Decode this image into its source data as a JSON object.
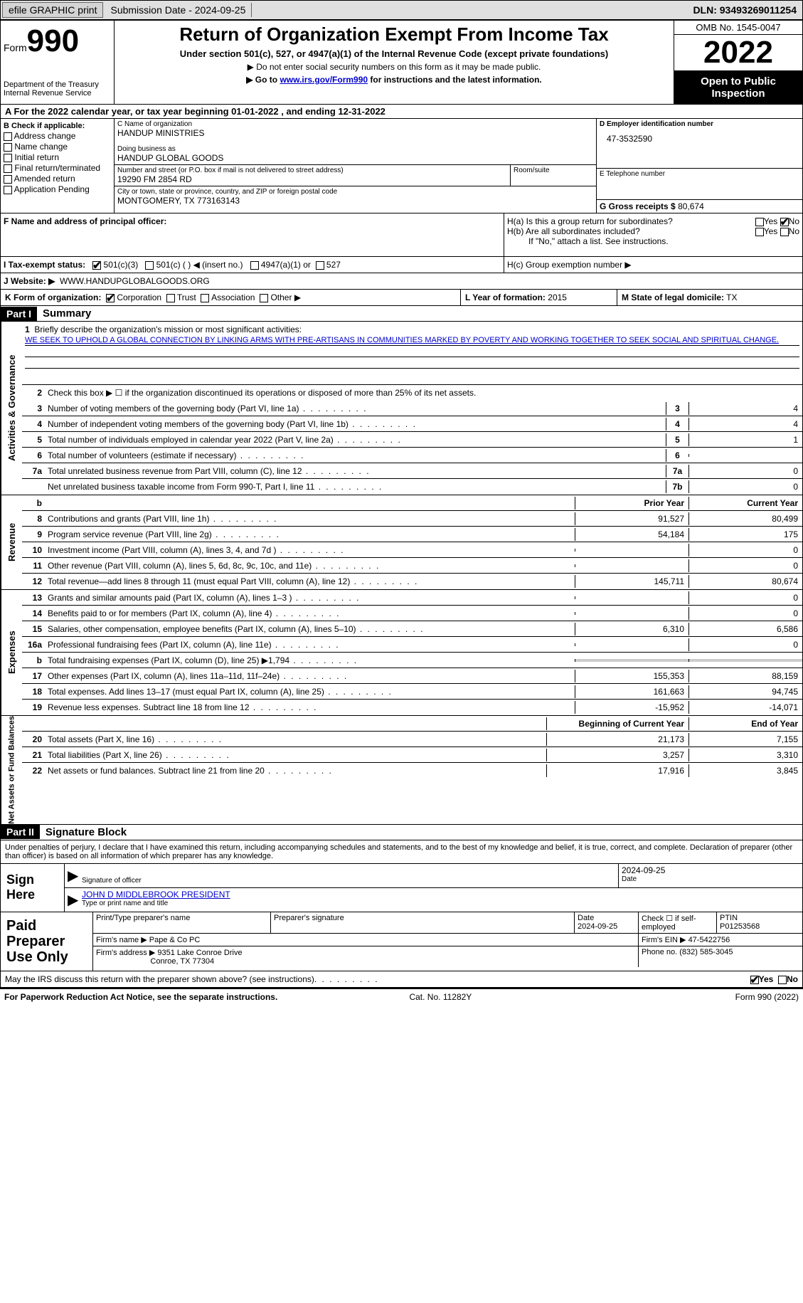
{
  "topbar": {
    "efile": "efile GRAPHIC print",
    "submission_label": "Submission Date - 2024-09-25",
    "dln": "DLN: 93493269011254"
  },
  "header": {
    "form_label": "Form",
    "form_number": "990",
    "dept": "Department of the Treasury Internal Revenue Service",
    "title": "Return of Organization Exempt From Income Tax",
    "sub1": "Under section 501(c), 527, or 4947(a)(1) of the Internal Revenue Code (except private foundations)",
    "sub2": "▶ Do not enter social security numbers on this form as it may be made public.",
    "sub3_pre": "▶ Go to ",
    "sub3_link": "www.irs.gov/Form990",
    "sub3_post": " for instructions and the latest information.",
    "omb": "OMB No. 1545-0047",
    "year": "2022",
    "inspection": "Open to Public Inspection"
  },
  "rowA": "A For the 2022 calendar year, or tax year beginning 01-01-2022    , and ending 12-31-2022",
  "colB": {
    "label": "B Check if applicable:",
    "opts": [
      "Address change",
      "Name change",
      "Initial return",
      "Final return/terminated",
      "Amended return",
      "Application Pending"
    ]
  },
  "C": {
    "name_lbl": "C Name of organization",
    "name": "HANDUP MINISTRIES",
    "dba_lbl": "Doing business as",
    "dba": "HANDUP GLOBAL GOODS",
    "street_lbl": "Number and street (or P.O. box if mail is not delivered to street address)",
    "street": "19290 FM 2854 RD",
    "room_lbl": "Room/suite",
    "city_lbl": "City or town, state or province, country, and ZIP or foreign postal code",
    "city": "MONTGOMERY, TX  773163143"
  },
  "D": {
    "lbl": "D Employer identification number",
    "val": "47-3532590"
  },
  "E": {
    "lbl": "E Telephone number",
    "val": ""
  },
  "G": {
    "lbl": "G Gross receipts $",
    "val": "80,674"
  },
  "F": {
    "lbl": "F Name and address of principal officer:",
    "val": ""
  },
  "H": {
    "a": "H(a)  Is this a group return for subordinates?",
    "b": "H(b)  Are all subordinates included?",
    "b_note": "If \"No,\" attach a list. See instructions.",
    "c": "H(c)  Group exemption number ▶",
    "yes": "Yes",
    "no": "No"
  },
  "I": {
    "lbl": "I    Tax-exempt status:",
    "o1": "501(c)(3)",
    "o2": "501(c) (  ) ◀ (insert no.)",
    "o3": "4947(a)(1) or",
    "o4": "527"
  },
  "J": {
    "lbl": "J    Website: ▶",
    "val": "WWW.HANDUPGLOBALGOODS.ORG"
  },
  "K": {
    "lbl": "K Form of organization:",
    "o1": "Corporation",
    "o2": "Trust",
    "o3": "Association",
    "o4": "Other ▶"
  },
  "L": {
    "lbl": "L Year of formation:",
    "val": "2015"
  },
  "M": {
    "lbl": "M State of legal domicile:",
    "val": "TX"
  },
  "part1": {
    "hdr": "Part I",
    "title": "Summary"
  },
  "sec1": {
    "label": "Activities & Governance",
    "l1": "Briefly describe the organization's mission or most significant activities:",
    "mission": "WE SEEK TO UPHOLD A GLOBAL CONNECTION BY LINKING ARMS WITH PRE-ARTISANS IN COMMUNITIES MARKED BY POVERTY AND WORKING TOGETHER TO SEEK SOCIAL AND SPIRITUAL CHANGE.",
    "l2": "Check this box ▶ ☐ if the organization discontinued its operations or disposed of more than 25% of its net assets.",
    "rows": [
      {
        "n": "3",
        "d": "Number of voting members of the governing body (Part VI, line 1a)",
        "b": "3",
        "v": "4"
      },
      {
        "n": "4",
        "d": "Number of independent voting members of the governing body (Part VI, line 1b)",
        "b": "4",
        "v": "4"
      },
      {
        "n": "5",
        "d": "Total number of individuals employed in calendar year 2022 (Part V, line 2a)",
        "b": "5",
        "v": "1"
      },
      {
        "n": "6",
        "d": "Total number of volunteers (estimate if necessary)",
        "b": "6",
        "v": ""
      },
      {
        "n": "7a",
        "d": "Total unrelated business revenue from Part VIII, column (C), line 12",
        "b": "7a",
        "v": "0"
      },
      {
        "n": "",
        "d": "Net unrelated business taxable income from Form 990-T, Part I, line 11",
        "b": "7b",
        "v": "0"
      }
    ]
  },
  "sec2": {
    "label": "Revenue",
    "hdr_prior": "Prior Year",
    "hdr_curr": "Current Year",
    "rows": [
      {
        "n": "8",
        "d": "Contributions and grants (Part VIII, line 1h)",
        "p": "91,527",
        "c": "80,499"
      },
      {
        "n": "9",
        "d": "Program service revenue (Part VIII, line 2g)",
        "p": "54,184",
        "c": "175"
      },
      {
        "n": "10",
        "d": "Investment income (Part VIII, column (A), lines 3, 4, and 7d )",
        "p": "",
        "c": "0"
      },
      {
        "n": "11",
        "d": "Other revenue (Part VIII, column (A), lines 5, 6d, 8c, 9c, 10c, and 11e)",
        "p": "",
        "c": "0"
      },
      {
        "n": "12",
        "d": "Total revenue—add lines 8 through 11 (must equal Part VIII, column (A), line 12)",
        "p": "145,711",
        "c": "80,674"
      }
    ]
  },
  "sec3": {
    "label": "Expenses",
    "rows": [
      {
        "n": "13",
        "d": "Grants and similar amounts paid (Part IX, column (A), lines 1–3 )",
        "p": "",
        "c": "0"
      },
      {
        "n": "14",
        "d": "Benefits paid to or for members (Part IX, column (A), line 4)",
        "p": "",
        "c": "0"
      },
      {
        "n": "15",
        "d": "Salaries, other compensation, employee benefits (Part IX, column (A), lines 5–10)",
        "p": "6,310",
        "c": "6,586"
      },
      {
        "n": "16a",
        "d": "Professional fundraising fees (Part IX, column (A), line 11e)",
        "p": "",
        "c": "0"
      },
      {
        "n": "b",
        "d": "Total fundraising expenses (Part IX, column (D), line 25) ▶1,794",
        "p": "grey",
        "c": "grey"
      },
      {
        "n": "17",
        "d": "Other expenses (Part IX, column (A), lines 11a–11d, 11f–24e)",
        "p": "155,353",
        "c": "88,159"
      },
      {
        "n": "18",
        "d": "Total expenses. Add lines 13–17 (must equal Part IX, column (A), line 25)",
        "p": "161,663",
        "c": "94,745"
      },
      {
        "n": "19",
        "d": "Revenue less expenses. Subtract line 18 from line 12",
        "p": "-15,952",
        "c": "-14,071"
      }
    ]
  },
  "sec4": {
    "label": "Net Assets or Fund Balances",
    "hdr_prior": "Beginning of Current Year",
    "hdr_curr": "End of Year",
    "rows": [
      {
        "n": "20",
        "d": "Total assets (Part X, line 16)",
        "p": "21,173",
        "c": "7,155"
      },
      {
        "n": "21",
        "d": "Total liabilities (Part X, line 26)",
        "p": "3,257",
        "c": "3,310"
      },
      {
        "n": "22",
        "d": "Net assets or fund balances. Subtract line 21 from line 20",
        "p": "17,916",
        "c": "3,845"
      }
    ]
  },
  "part2": {
    "hdr": "Part II",
    "title": "Signature Block"
  },
  "sig": {
    "intro": "Under penalties of perjury, I declare that I have examined this return, including accompanying schedules and statements, and to the best of my knowledge and belief, it is true, correct, and complete. Declaration of preparer (other than officer) is based on all information of which preparer has any knowledge.",
    "sign_here": "Sign Here",
    "sig_officer": "Signature of officer",
    "date_lbl": "Date",
    "date_val": "2024-09-25",
    "name": "JOHN D MIDDLEBROOK  PRESIDENT",
    "name_lbl": "Type or print name and title"
  },
  "paid": {
    "label": "Paid Preparer Use Only",
    "r1": {
      "c1": "Print/Type preparer's name",
      "c2": "Preparer's signature",
      "c3_l": "Date",
      "c3_v": "2024-09-25",
      "c4_l": "Check ☐ if self-employed",
      "c5_l": "PTIN",
      "c5_v": "P01253568"
    },
    "r2": {
      "l": "Firm's name    ▶",
      "v": "Pape & Co PC",
      "r_l": "Firm's EIN ▶",
      "r_v": "47-5422756"
    },
    "r3": {
      "l": "Firm's address ▶",
      "v1": "9351 Lake Conroe Drive",
      "v2": "Conroe, TX  77304",
      "r_l": "Phone no.",
      "r_v": "(832) 585-3045"
    }
  },
  "discuss": {
    "q": "May the IRS discuss this return with the preparer shown above? (see instructions)",
    "yes": "Yes",
    "no": "No"
  },
  "footer": {
    "left": "For Paperwork Reduction Act Notice, see the separate instructions.",
    "mid": "Cat. No. 11282Y",
    "right": "Form 990 (2022)"
  },
  "colors": {
    "link": "#0000cc",
    "grey": "#cccccc"
  }
}
